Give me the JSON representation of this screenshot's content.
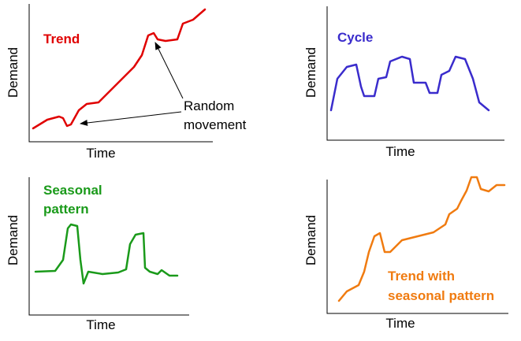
{
  "panels": [
    {
      "title": [
        "Trend"
      ],
      "y_label": "Demand",
      "x_label": "Time",
      "annotation": [
        "Random",
        "movement"
      ]
    },
    {
      "title": [
        "Cycle"
      ],
      "y_label": "Demand",
      "x_label": "Time"
    },
    {
      "title": [
        "Seasonal",
        "pattern"
      ],
      "y_label": "Demand",
      "x_label": "Time"
    },
    {
      "title": [
        "Trend with",
        "seasonal pattern"
      ],
      "y_label": "Demand",
      "x_label": "Time"
    }
  ]
}
